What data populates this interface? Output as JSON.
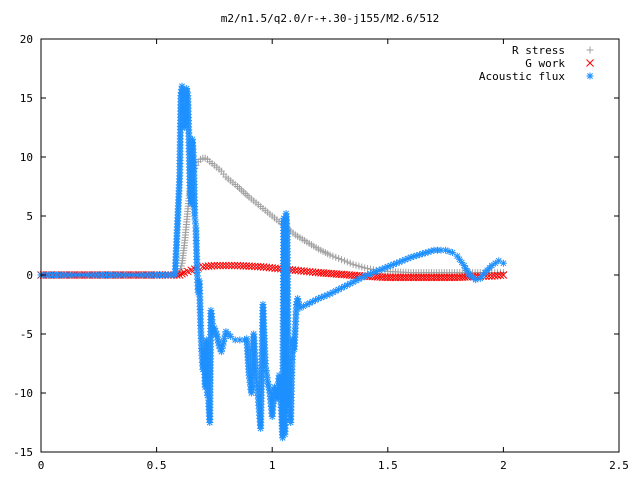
{
  "chart_data": {
    "type": "scatter",
    "title": "m2/n1.5/q2.0/r-+.30-j155/M2.6/512",
    "xlabel": "",
    "ylabel": "",
    "xlim": [
      0,
      2.5
    ],
    "ylim": [
      -15,
      20
    ],
    "xticks": [
      0,
      0.5,
      1,
      1.5,
      2,
      2.5
    ],
    "yticks": [
      -15,
      -10,
      -5,
      0,
      5,
      10,
      15,
      20
    ],
    "xtick_labels": [
      "0",
      "0.5",
      "1",
      "1.5",
      "2",
      "2.5"
    ],
    "ytick_labels": [
      "-15",
      "-10",
      "-5",
      "0",
      "5",
      "10",
      "15",
      "20"
    ],
    "grid": false,
    "legend_position": "top-right",
    "series": [
      {
        "name": "R stress",
        "marker": "plus",
        "color": "#a0a0a0",
        "x": [
          0.0,
          0.1,
          0.2,
          0.3,
          0.4,
          0.5,
          0.55,
          0.58,
          0.6,
          0.61,
          0.62,
          0.63,
          0.64,
          0.65,
          0.66,
          0.67,
          0.68,
          0.69,
          0.7,
          0.71,
          0.72,
          0.73,
          0.75,
          0.78,
          0.8,
          0.85,
          0.9,
          0.95,
          1.0,
          1.05,
          1.1,
          1.15,
          1.2,
          1.25,
          1.3,
          1.35,
          1.4,
          1.45,
          1.5,
          1.6,
          1.7,
          1.8,
          1.9,
          1.95,
          2.0
        ],
        "y": [
          0,
          0,
          0,
          0,
          0,
          0,
          0,
          0,
          0.3,
          1.0,
          2.5,
          4.5,
          6.5,
          8.0,
          8.8,
          9.3,
          9.6,
          9.8,
          9.9,
          9.9,
          9.8,
          9.6,
          9.3,
          8.8,
          8.3,
          7.5,
          6.6,
          5.8,
          5.0,
          4.2,
          3.4,
          2.8,
          2.2,
          1.7,
          1.3,
          0.9,
          0.6,
          0.4,
          0.3,
          0.2,
          0.2,
          0.2,
          0.2,
          0.2,
          0.2
        ]
      },
      {
        "name": "G work",
        "marker": "cross",
        "color": "#ff0000",
        "x": [
          0.0,
          0.1,
          0.2,
          0.3,
          0.4,
          0.5,
          0.55,
          0.6,
          0.62,
          0.65,
          0.68,
          0.7,
          0.75,
          0.8,
          0.85,
          0.9,
          0.95,
          1.0,
          1.05,
          1.1,
          1.15,
          1.2,
          1.3,
          1.4,
          1.5,
          1.6,
          1.7,
          1.8,
          1.9,
          1.95,
          2.0
        ],
        "y": [
          0,
          0,
          0,
          0,
          0,
          0,
          0,
          0,
          0.2,
          0.4,
          0.6,
          0.7,
          0.8,
          0.8,
          0.8,
          0.75,
          0.7,
          0.6,
          0.5,
          0.4,
          0.3,
          0.2,
          0.05,
          -0.1,
          -0.2,
          -0.2,
          -0.2,
          -0.2,
          -0.1,
          -0.1,
          0.0
        ]
      },
      {
        "name": "Acoustic flux",
        "marker": "star",
        "color": "#1e90ff",
        "x": [
          0.0,
          0.05,
          0.1,
          0.15,
          0.2,
          0.25,
          0.3,
          0.35,
          0.4,
          0.45,
          0.5,
          0.55,
          0.58,
          0.6,
          0.605,
          0.61,
          0.615,
          0.62,
          0.625,
          0.63,
          0.635,
          0.64,
          0.645,
          0.65,
          0.655,
          0.66,
          0.665,
          0.67,
          0.675,
          0.68,
          0.685,
          0.69,
          0.695,
          0.7,
          0.705,
          0.71,
          0.715,
          0.72,
          0.725,
          0.73,
          0.735,
          0.74,
          0.745,
          0.75,
          0.76,
          0.77,
          0.78,
          0.8,
          0.82,
          0.84,
          0.86,
          0.88,
          0.89,
          0.9,
          0.91,
          0.92,
          0.93,
          0.94,
          0.95,
          0.96,
          0.97,
          0.98,
          0.99,
          1.0,
          1.01,
          1.02,
          1.03,
          1.04,
          1.045,
          1.05,
          1.055,
          1.06,
          1.065,
          1.07,
          1.075,
          1.08,
          1.085,
          1.09,
          1.095,
          1.1,
          1.105,
          1.11,
          1.12,
          1.15,
          1.2,
          1.25,
          1.3,
          1.35,
          1.4,
          1.45,
          1.5,
          1.55,
          1.6,
          1.65,
          1.7,
          1.73,
          1.75,
          1.78,
          1.8,
          1.83,
          1.85,
          1.88,
          1.9,
          1.92,
          1.95,
          1.98,
          2.0
        ],
        "y": [
          0,
          0,
          0,
          0,
          0,
          0,
          0,
          0,
          0,
          0,
          0,
          0,
          0,
          8.4,
          15.2,
          16.0,
          14.5,
          12.5,
          13.0,
          15.8,
          15.2,
          11.5,
          6.8,
          6.0,
          11.5,
          9.8,
          5.0,
          4.0,
          0.5,
          -1.5,
          -0.5,
          -4.0,
          -6.5,
          -8.0,
          -6.3,
          -9.5,
          -5.5,
          -10.2,
          -10.6,
          -12.5,
          -3.0,
          -3.8,
          -5.0,
          -4.5,
          -5.0,
          -6.0,
          -6.5,
          -4.8,
          -5.2,
          -5.5,
          -5.5,
          -5.5,
          -5.4,
          -8.5,
          -10.0,
          -5.0,
          -8.5,
          -10.5,
          -13.0,
          -2.5,
          -7.5,
          -9.0,
          -10.0,
          -12.0,
          -9.5,
          -10.5,
          -8.5,
          -11.5,
          -13.8,
          4.8,
          -13.5,
          5.2,
          3.5,
          -10.8,
          -11.8,
          -12.5,
          -8.0,
          -5.5,
          -6.3,
          -4.5,
          -2.5,
          -2.0,
          -2.8,
          -2.5,
          -2.0,
          -1.6,
          -1.1,
          -0.6,
          -0.1,
          0.3,
          0.7,
          1.1,
          1.5,
          1.8,
          2.1,
          2.1,
          2.1,
          1.9,
          1.6,
          0.8,
          0.1,
          -0.4,
          -0.3,
          0.2,
          0.8,
          1.2,
          1.0
        ]
      }
    ]
  }
}
